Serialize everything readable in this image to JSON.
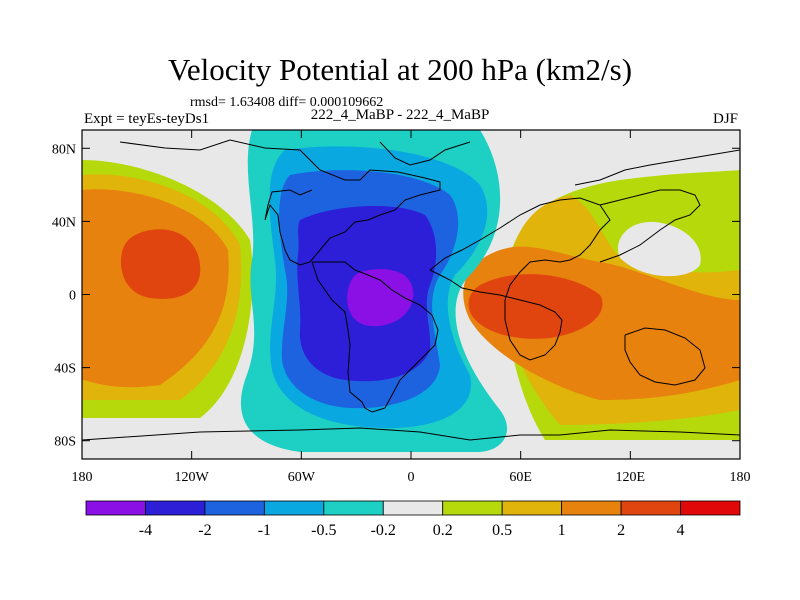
{
  "header": {
    "title": "Velocity Potential at 200 hPa (km2/s)",
    "stats": "rmsd= 1.63408 diff= 0.000109662",
    "experiment": "Expt = teyEs-teyDs1",
    "case_label": "222_4_MaBP - 222_4_MaBP",
    "season": "DJF"
  },
  "chart_data": {
    "type": "heatmap",
    "title": "Velocity Potential at 200 hPa (km2/s)",
    "x_axis": {
      "range": [
        -180,
        180
      ],
      "ticks": [
        -180,
        -120,
        -60,
        0,
        60,
        120,
        180
      ],
      "tick_labels": [
        "180",
        "120W",
        "60W",
        "0",
        "60E",
        "120E",
        "180"
      ]
    },
    "y_axis": {
      "range": [
        -90,
        90
      ],
      "ticks": [
        80,
        40,
        0,
        -40,
        -80
      ],
      "tick_labels": [
        "80N",
        "40N",
        "0",
        "40S",
        "80S"
      ]
    },
    "colorbar": {
      "labels": [
        "-4",
        "-2",
        "-1",
        "-0.5",
        "-0.2",
        "0.2",
        "0.5",
        "1",
        "2",
        "4"
      ],
      "colors": [
        "#8a10e6",
        "#2d1fd8",
        "#1d63e0",
        "#0aa8e0",
        "#1ecfc3",
        "#e8e8e8",
        "#b5d90a",
        "#e0b40a",
        "#e8820e",
        "#e04510",
        "#e00808"
      ]
    },
    "fields": [
      {
        "name": "negative-center",
        "lon": -18,
        "lat": 0,
        "value": -5
      },
      {
        "name": "positive-center-east",
        "lon": 70,
        "lat": 0,
        "value": 4
      },
      {
        "name": "positive-center-west",
        "lon": -145,
        "lat": 15,
        "value": 3
      }
    ]
  }
}
